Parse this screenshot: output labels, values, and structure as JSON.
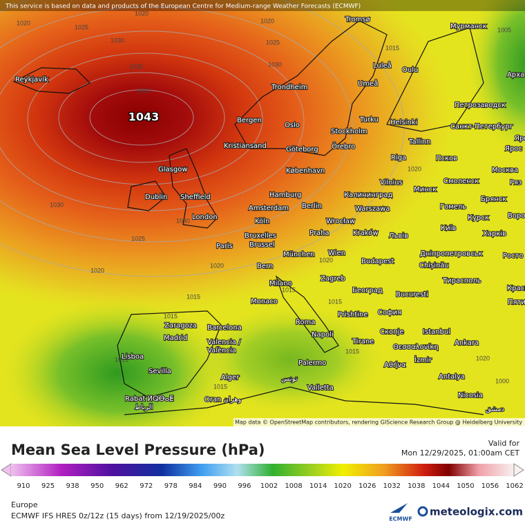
{
  "header": {
    "attribution": "This service is based on data and products of the European Centre for Medium-range Weather Forecasts (ECMWF)"
  },
  "map": {
    "credit": "Map data © OpenStreetMap contributors, rendering GIScience Research Group @ Heidelberg University",
    "high_label": "1043",
    "pressure_labels": [
      1020,
      1020,
      1025,
      1030,
      1020,
      1025,
      1030,
      1035,
      1040,
      1005,
      1015,
      1030,
      1030,
      1025,
      1020,
      1020,
      1015,
      1015,
      1015,
      1015,
      1020,
      1020,
      1015,
      1015,
      1020,
      1000,
      1015
    ],
    "cities": [
      "Reykjavík",
      "Tromsø",
      "Мурманск",
      "Luleå",
      "Oulu",
      "Umeå",
      "Trondheim",
      "Арха",
      "Петрозаводск",
      "Bergen",
      "Oslo",
      "Turku",
      "Helsinki",
      "Санкт-Петербург",
      "Stockholm",
      "Kristiansand",
      "Örebro",
      "Göteborg",
      "Tallinn",
      "Glasgow",
      "København",
      "Riga",
      "Псков",
      "Москва",
      "Dublin",
      "Sheffield",
      "Hamburg",
      "Vilnius",
      "Смоленск",
      "Минск",
      "Калининград",
      "Amsterdam",
      "Berlin",
      "Warszawa",
      "Гомель",
      "Брянск",
      "London",
      "Wrocław",
      "Köln",
      "Курск",
      "Bruxelles",
      "Brussel",
      "Praha",
      "Kraków",
      "Київ",
      "Харків",
      "Paris",
      "Львів",
      "München",
      "Wien",
      "Дніпропетровськ",
      "Chișinău",
      "Bern",
      "Budapest",
      "Тирасполь",
      "Milano",
      "Zagreb",
      "Београд",
      "Bucuresti",
      "Monaco",
      "Prishtine",
      "София",
      "Roma",
      "Zaragoza",
      "Barcelona",
      "Скопје",
      "Istanbul",
      "Madrid",
      "Napoli",
      "Tirane",
      "Θεσσαλονίκη",
      "Valencia /",
      "València",
      "Ankara",
      "Lisboa",
      "İzmir",
      "Αθήνα",
      "Palermo",
      "Sevilla",
      "Antalya",
      "Alger",
      "تونس",
      "Valletta",
      "Rabat ⵍⵕⴱⴰⵟ",
      "الرباط",
      "Oran وهران",
      "Nicosia",
      "دمشق",
      "Яро",
      "Ярос",
      "Ряз",
      "Воро",
      "Росто",
      "Красно",
      "Пяти"
    ]
  },
  "legend": {
    "title": "Mean Sea Level Pressure (hPa)",
    "valid_label": "Valid for",
    "valid_time": "Mon 12/29/2025, 01:00am CET",
    "ticks": [
      910,
      925,
      938,
      950,
      962,
      972,
      978,
      984,
      990,
      996,
      1002,
      1008,
      1014,
      1020,
      1026,
      1032,
      1038,
      1044,
      1050,
      1056,
      1062
    ]
  },
  "footer": {
    "region": "Europe",
    "model": "ECMWF IFS HRES 0z/12z (15 days) from  12/19/2025/00z",
    "ecmwf": "ECMWF",
    "brand": "meteologix.com"
  }
}
